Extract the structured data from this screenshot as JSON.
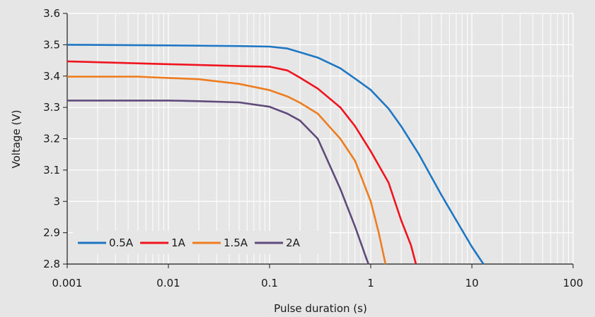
{
  "chart_data": {
    "type": "line",
    "title": "",
    "xlabel": "Pulse duration (s)",
    "ylabel": "Voltage (V)",
    "xscale": "log",
    "xlim": [
      0.001,
      100
    ],
    "ylim": [
      2.8,
      3.6
    ],
    "x_ticks": [
      "0.001",
      "0.01",
      "0.1",
      "1",
      "10",
      "100"
    ],
    "y_ticks": [
      "2.8",
      "2.9",
      "3",
      "3.1",
      "3.2",
      "3.3",
      "3.4",
      "3.5",
      "3.6"
    ],
    "grid": true,
    "legend_position": "bottom-left",
    "series": [
      {
        "name": "0.5A",
        "color": "#1f77c4",
        "points": [
          [
            0.001,
            3.5
          ],
          [
            0.01,
            3.498
          ],
          [
            0.05,
            3.496
          ],
          [
            0.1,
            3.494
          ],
          [
            0.15,
            3.488
          ],
          [
            0.2,
            3.476
          ],
          [
            0.3,
            3.459
          ],
          [
            0.5,
            3.425
          ],
          [
            0.7,
            3.392
          ],
          [
            1,
            3.356
          ],
          [
            1.5,
            3.296
          ],
          [
            2,
            3.24
          ],
          [
            3,
            3.15
          ],
          [
            5,
            3.02
          ],
          [
            7,
            2.94
          ],
          [
            10,
            2.855
          ],
          [
            13,
            2.8
          ]
        ]
      },
      {
        "name": "1A",
        "color": "#f0141e",
        "points": [
          [
            0.001,
            3.447
          ],
          [
            0.01,
            3.438
          ],
          [
            0.05,
            3.432
          ],
          [
            0.1,
            3.43
          ],
          [
            0.15,
            3.418
          ],
          [
            0.2,
            3.395
          ],
          [
            0.3,
            3.36
          ],
          [
            0.5,
            3.3
          ],
          [
            0.7,
            3.24
          ],
          [
            1,
            3.16
          ],
          [
            1.5,
            3.06
          ],
          [
            2,
            2.94
          ],
          [
            2.5,
            2.86
          ],
          [
            2.8,
            2.8
          ]
        ]
      },
      {
        "name": "1.5A",
        "color": "#ed7d20",
        "points": [
          [
            0.001,
            3.398
          ],
          [
            0.005,
            3.398
          ],
          [
            0.01,
            3.394
          ],
          [
            0.02,
            3.39
          ],
          [
            0.05,
            3.375
          ],
          [
            0.1,
            3.355
          ],
          [
            0.15,
            3.335
          ],
          [
            0.2,
            3.315
          ],
          [
            0.3,
            3.28
          ],
          [
            0.5,
            3.2
          ],
          [
            0.7,
            3.13
          ],
          [
            1,
            3.0
          ],
          [
            1.2,
            2.9
          ],
          [
            1.4,
            2.8
          ]
        ]
      },
      {
        "name": "2A",
        "color": "#604a7b",
        "points": [
          [
            0.001,
            3.322
          ],
          [
            0.01,
            3.322
          ],
          [
            0.02,
            3.32
          ],
          [
            0.05,
            3.316
          ],
          [
            0.1,
            3.302
          ],
          [
            0.15,
            3.28
          ],
          [
            0.2,
            3.258
          ],
          [
            0.3,
            3.2
          ],
          [
            0.5,
            3.04
          ],
          [
            0.7,
            2.92
          ],
          [
            0.9,
            2.82
          ],
          [
            0.95,
            2.8
          ]
        ]
      }
    ]
  }
}
